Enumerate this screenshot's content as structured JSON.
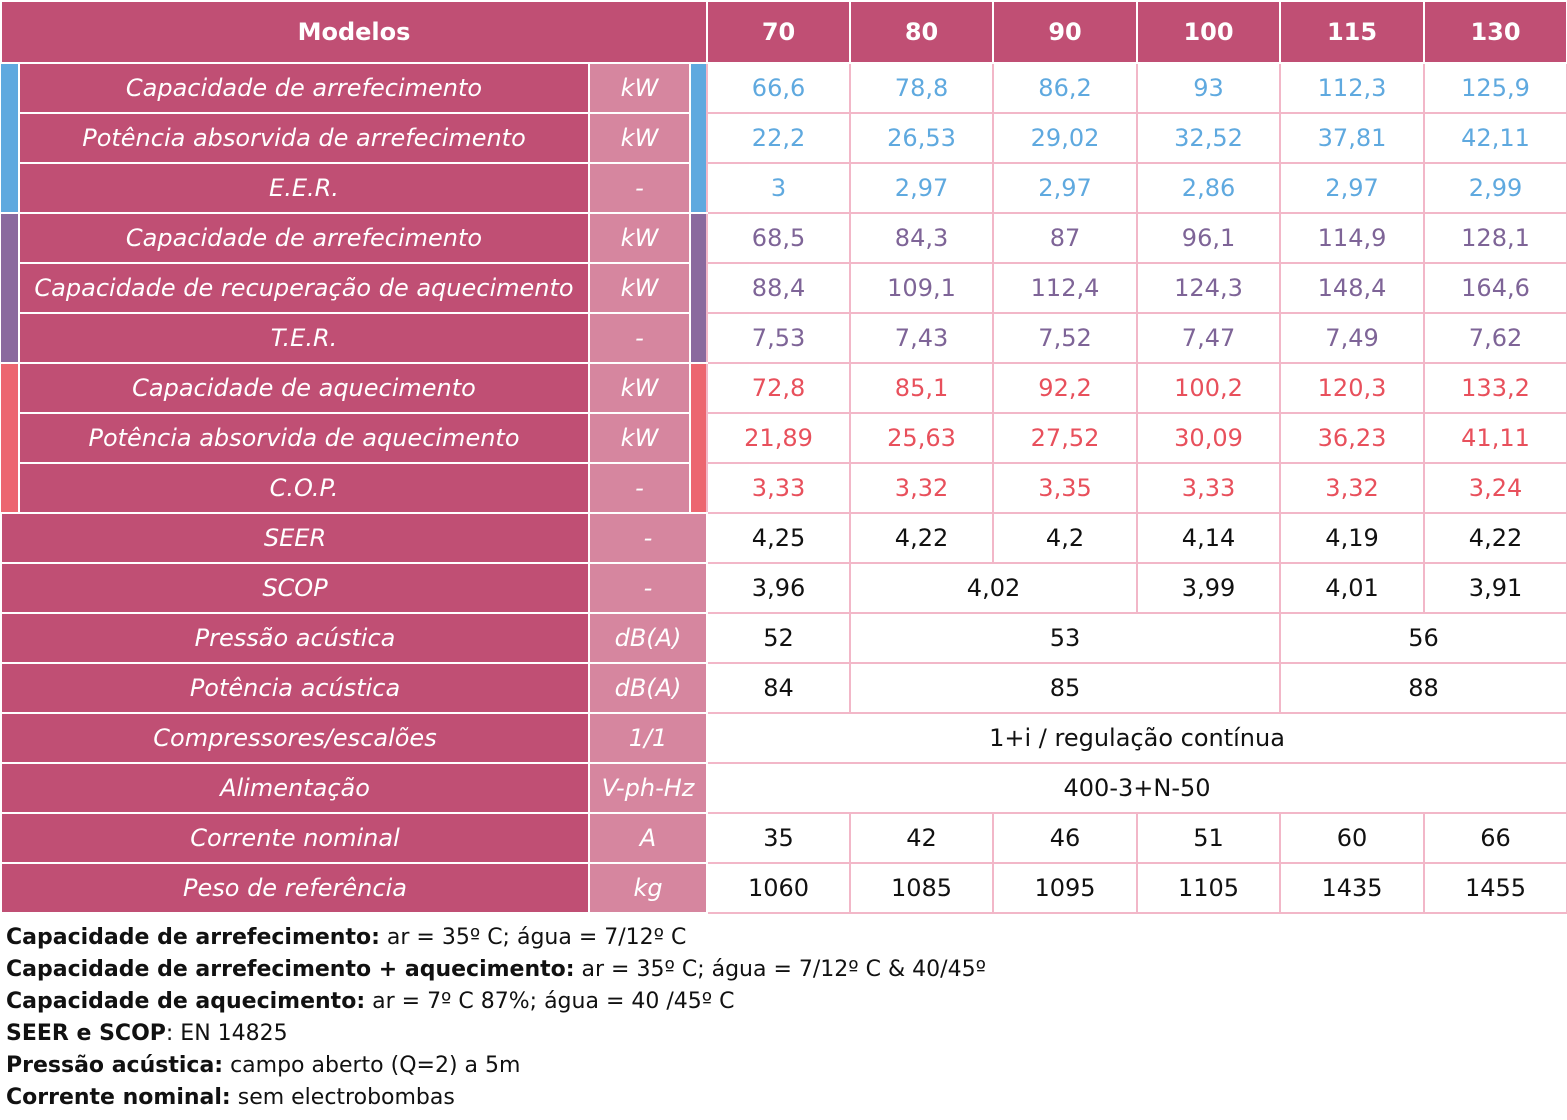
{
  "header": {
    "title": "Modelos",
    "models": [
      "70",
      "80",
      "90",
      "100",
      "115",
      "130"
    ]
  },
  "colors": {
    "header_bg": "#c04f74",
    "unit_bg": "#d6869f",
    "cooling": "#5fa9df",
    "recovery": "#8a6a9e",
    "heating": "#ec6670",
    "grid": "#f2b7c8"
  },
  "rows": [
    {
      "label": "Capacidade de arrefecimento",
      "unit": "kW",
      "values": [
        "66,6",
        "78,8",
        "86,2",
        "93",
        "112,3",
        "125,9"
      ]
    },
    {
      "label": "Potência absorvida de arrefecimento",
      "unit": "kW",
      "values": [
        "22,2",
        "26,53",
        "29,02",
        "32,52",
        "37,81",
        "42,11"
      ]
    },
    {
      "label": "E.E.R.",
      "unit": "-",
      "values": [
        "3",
        "2,97",
        "2,97",
        "2,86",
        "2,97",
        "2,99"
      ]
    },
    {
      "label": "Capacidade de arrefecimento",
      "unit": "kW",
      "values": [
        "68,5",
        "84,3",
        "87",
        "96,1",
        "114,9",
        "128,1"
      ]
    },
    {
      "label": "Capacidade de recuperação de aquecimento",
      "unit": "kW",
      "values": [
        "88,4",
        "109,1",
        "112,4",
        "124,3",
        "148,4",
        "164,6"
      ]
    },
    {
      "label": "T.E.R.",
      "unit": "-",
      "values": [
        "7,53",
        "7,43",
        "7,52",
        "7,47",
        "7,49",
        "7,62"
      ]
    },
    {
      "label": "Capacidade de aquecimento",
      "unit": "kW",
      "values": [
        "72,8",
        "85,1",
        "92,2",
        "100,2",
        "120,3",
        "133,2"
      ]
    },
    {
      "label": "Potência absorvida de aquecimento",
      "unit": "kW",
      "values": [
        "21,89",
        "25,63",
        "27,52",
        "30,09",
        "36,23",
        "41,11"
      ]
    },
    {
      "label": "C.O.P.",
      "unit": "-",
      "values": [
        "3,33",
        "3,32",
        "3,35",
        "3,33",
        "3,32",
        "3,24"
      ]
    },
    {
      "label": "SEER",
      "unit": "-",
      "values": [
        "4,25",
        "4,22",
        "4,2",
        "4,14",
        "4,19",
        "4,22"
      ]
    },
    {
      "label": "SCOP",
      "unit": "-",
      "values": [
        "3,96",
        "4,02",
        "3,99",
        "4,01",
        "3,91"
      ]
    },
    {
      "label": "Pressão acústica",
      "unit": "dB(A)",
      "values": [
        "52",
        "53",
        "56"
      ]
    },
    {
      "label": "Potência acústica",
      "unit": "dB(A)",
      "values": [
        "84",
        "85",
        "88"
      ]
    },
    {
      "label": "Compressores/escalões",
      "unit": "1/1",
      "values": [
        "1+i / regulação contínua"
      ]
    },
    {
      "label": "Alimentação",
      "unit": "V-ph-Hz",
      "values": [
        "400-3+N-50"
      ]
    },
    {
      "label": "Corrente nominal",
      "unit": "A",
      "values": [
        "35",
        "42",
        "46",
        "51",
        "60",
        "66"
      ]
    },
    {
      "label": "Peso de referência",
      "unit": "kg",
      "values": [
        "1060",
        "1085",
        "1095",
        "1105",
        "1435",
        "1455"
      ]
    }
  ],
  "notes": [
    {
      "label": "Capacidade de arrefecimento:",
      "text": " ar = 35º C; água = 7/12º C"
    },
    {
      "label": "Capacidade de arrefecimento + aquecimento:",
      "text": " ar = 35º C; água = 7/12º C & 40/45º"
    },
    {
      "label": "Capacidade de aquecimento:",
      "text": " ar = 7º C 87%; água = 40 /45º C"
    },
    {
      "label": "SEER e SCOP",
      "text": ": EN 14825"
    },
    {
      "label": "Pressão acústica:",
      "text": " campo aberto (Q=2) a 5m"
    },
    {
      "label": "Corrente nominal:",
      "text": " sem electrobombas"
    }
  ]
}
